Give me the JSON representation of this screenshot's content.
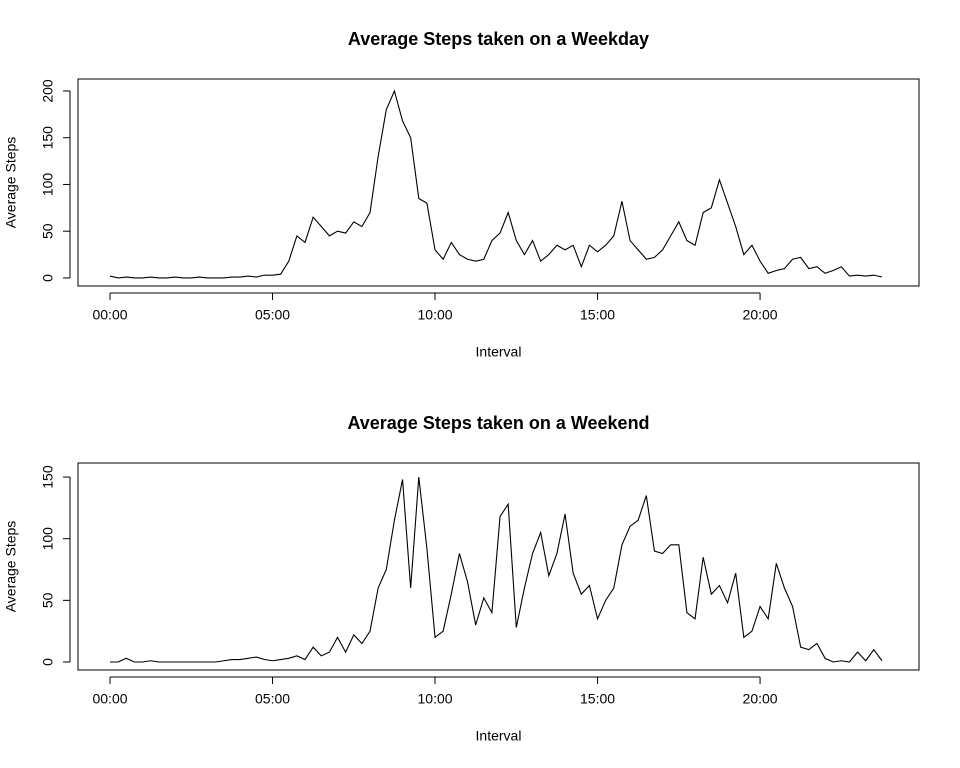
{
  "chart_data": [
    {
      "type": "line",
      "title": "Average Steps taken on a Weekday",
      "x_label": "Interval",
      "y_label": "Average Steps",
      "x": [
        0,
        0.25,
        0.5,
        0.75,
        1,
        1.25,
        1.5,
        1.75,
        2,
        2.25,
        2.5,
        2.75,
        3,
        3.25,
        3.5,
        3.75,
        4,
        4.25,
        4.5,
        4.75,
        5,
        5.25,
        5.5,
        5.75,
        6,
        6.25,
        6.5,
        6.75,
        7,
        7.25,
        7.5,
        7.75,
        8,
        8.25,
        8.5,
        8.75,
        9,
        9.25,
        9.5,
        9.75,
        10,
        10.25,
        10.5,
        10.75,
        11,
        11.25,
        11.5,
        11.75,
        12,
        12.25,
        12.5,
        12.75,
        13,
        13.25,
        13.5,
        13.75,
        14,
        14.25,
        14.5,
        14.75,
        15,
        15.25,
        15.5,
        15.75,
        16,
        16.25,
        16.5,
        16.75,
        17,
        17.25,
        17.5,
        17.75,
        18,
        18.25,
        18.5,
        18.75,
        19,
        19.25,
        19.5,
        19.75,
        20,
        20.25,
        20.5,
        20.75,
        21,
        21.25,
        21.5,
        21.75,
        22,
        22.25,
        22.5,
        22.75,
        23,
        23.25,
        23.5,
        23.75
      ],
      "values": [
        2,
        0,
        1,
        0,
        0,
        1,
        0,
        0,
        1,
        0,
        0,
        1,
        0,
        0,
        0,
        1,
        1,
        2,
        1,
        3,
        3,
        4,
        18,
        45,
        38,
        65,
        55,
        45,
        50,
        48,
        60,
        55,
        70,
        130,
        180,
        200,
        168,
        150,
        85,
        80,
        30,
        20,
        38,
        25,
        20,
        18,
        20,
        40,
        48,
        70,
        40,
        25,
        40,
        18,
        25,
        35,
        30,
        35,
        12,
        35,
        28,
        35,
        45,
        82,
        40,
        30,
        20,
        22,
        30,
        45,
        60,
        40,
        35,
        70,
        75,
        105,
        80,
        55,
        25,
        35,
        18,
        5,
        8,
        10,
        20,
        22,
        10,
        12,
        5,
        8,
        12,
        2,
        3,
        2,
        3,
        1
      ],
      "color": "#000000",
      "xlim": [
        -0.985,
        24.89
      ],
      "ylim": [
        -8.6,
        212.8
      ],
      "xticks": [
        {
          "value": 0,
          "label": "00:00"
        },
        {
          "value": 5,
          "label": "05:00"
        },
        {
          "value": 10,
          "label": "10:00"
        },
        {
          "value": 15,
          "label": "15:00"
        },
        {
          "value": 20,
          "label": "20:00"
        }
      ],
      "yticks": [
        0,
        50,
        100,
        150,
        200
      ]
    },
    {
      "type": "line",
      "title": "Average Steps taken on a Weekend",
      "x_label": "Interval",
      "y_label": "Average Steps",
      "x": [
        0,
        0.25,
        0.5,
        0.75,
        1,
        1.25,
        1.5,
        1.75,
        2,
        2.25,
        2.5,
        2.75,
        3,
        3.25,
        3.5,
        3.75,
        4,
        4.25,
        4.5,
        4.75,
        5,
        5.25,
        5.5,
        5.75,
        6,
        6.25,
        6.5,
        6.75,
        7,
        7.25,
        7.5,
        7.75,
        8,
        8.25,
        8.5,
        8.75,
        9,
        9.25,
        9.5,
        9.75,
        10,
        10.25,
        10.5,
        10.75,
        11,
        11.25,
        11.5,
        11.75,
        12,
        12.25,
        12.5,
        12.75,
        13,
        13.25,
        13.5,
        13.75,
        14,
        14.25,
        14.5,
        14.75,
        15,
        15.25,
        15.5,
        15.75,
        16,
        16.25,
        16.5,
        16.75,
        17,
        17.25,
        17.5,
        17.75,
        18,
        18.25,
        18.5,
        18.75,
        19,
        19.25,
        19.5,
        19.75,
        20,
        20.25,
        20.5,
        20.75,
        21,
        21.25,
        21.5,
        21.75,
        22,
        22.25,
        22.5,
        22.75,
        23,
        23.25,
        23.5,
        23.75
      ],
      "values": [
        0,
        0,
        3,
        0,
        0,
        1,
        0,
        0,
        0,
        0,
        0,
        0,
        0,
        0,
        1,
        2,
        2,
        3,
        4,
        2,
        1,
        2,
        3,
        5,
        2,
        12,
        5,
        8,
        20,
        8,
        22,
        15,
        25,
        60,
        75,
        115,
        148,
        60,
        150,
        92,
        20,
        25,
        55,
        88,
        65,
        30,
        52,
        40,
        118,
        128,
        28,
        60,
        88,
        105,
        70,
        88,
        120,
        72,
        55,
        62,
        35,
        50,
        60,
        95,
        110,
        115,
        135,
        90,
        88,
        95,
        95,
        40,
        35,
        85,
        55,
        62,
        48,
        72,
        20,
        25,
        45,
        35,
        80,
        60,
        45,
        12,
        10,
        15,
        3,
        0,
        1,
        0,
        8,
        1,
        10,
        1
      ],
      "color": "#000000",
      "xlim": [
        -0.985,
        24.89
      ],
      "ylim": [
        -6.5,
        161.4
      ],
      "xticks": [
        {
          "value": 0,
          "label": "00:00"
        },
        {
          "value": 5,
          "label": "05:00"
        },
        {
          "value": 10,
          "label": "10:00"
        },
        {
          "value": 15,
          "label": "15:00"
        },
        {
          "value": 20,
          "label": "20:00"
        }
      ],
      "yticks": [
        0,
        50,
        100,
        150
      ]
    }
  ]
}
